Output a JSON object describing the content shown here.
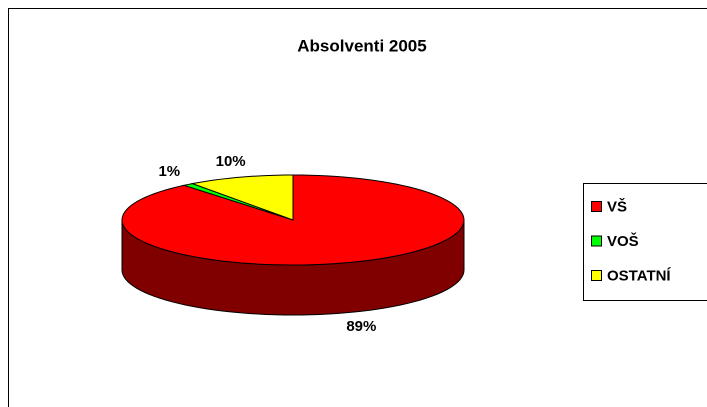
{
  "chart_data": {
    "type": "pie",
    "title": "Absolventi 2005",
    "categories": [
      "VŠ",
      "VOŠ",
      "OSTATNÍ"
    ],
    "values": [
      89,
      1,
      10
    ],
    "value_labels": [
      "89%",
      "1%",
      "10%"
    ],
    "colors": [
      "#ff0000",
      "#00ff00",
      "#ffff00"
    ],
    "side_colors": [
      "#800000",
      "#008000",
      "#808000"
    ],
    "legend": "right"
  }
}
